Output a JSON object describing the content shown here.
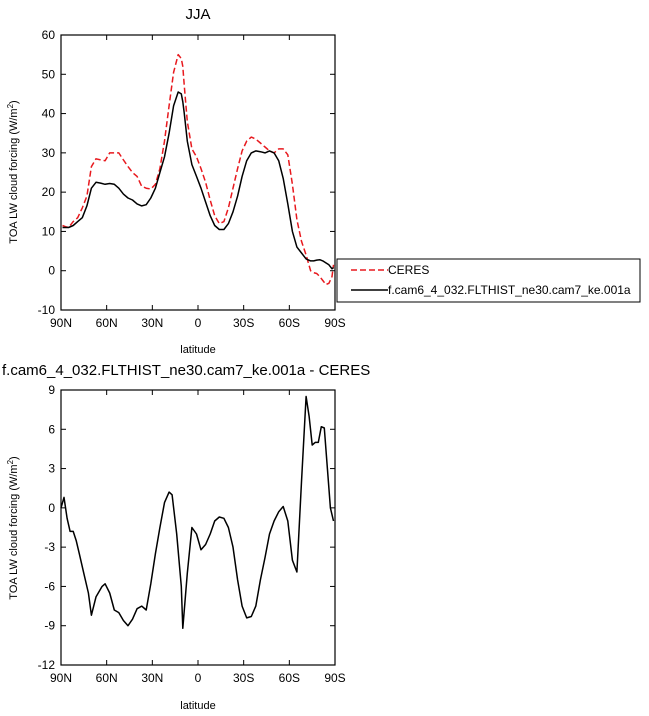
{
  "chart_data": [
    {
      "type": "line",
      "title": "JJA",
      "xlabel": "latitude",
      "ylabel": "TOA LW cloud forcing (W/m",
      "ylabel_sup": "2",
      "ylabel_close": ")",
      "xlim": [
        90,
        -90
      ],
      "ylim": [
        -10,
        60
      ],
      "xticks": [
        90,
        60,
        30,
        0,
        -30,
        -60,
        -90
      ],
      "xtick_labels": [
        "90N",
        "60N",
        "30N",
        "0",
        "30S",
        "60S",
        "90S"
      ],
      "yticks": [
        -10,
        0,
        10,
        20,
        30,
        40,
        50,
        60
      ],
      "ytick_labels": [
        "-10",
        "0",
        "10",
        "20",
        "30",
        "40",
        "50",
        "60"
      ],
      "grid": false,
      "legend_position": "right",
      "series": [
        {
          "name": "CERES",
          "color": "#e8191e",
          "dash": "dashed",
          "x": [
            89,
            87,
            85,
            82,
            79,
            76,
            73,
            70,
            67,
            64,
            61,
            58,
            55,
            52,
            49,
            46,
            43,
            40,
            37,
            34,
            31,
            28,
            25,
            22,
            19,
            16,
            13,
            11,
            10,
            9,
            7,
            4,
            1,
            -2,
            -5,
            -8,
            -11,
            -14,
            -17,
            -20,
            -23,
            -26,
            -29,
            -32,
            -35,
            -38,
            -41,
            -44,
            -47,
            -50,
            -53,
            -56,
            -59,
            -62,
            -65,
            -68,
            -71,
            -74,
            -76,
            -78,
            -80,
            -82,
            -84,
            -86,
            -88,
            -89
          ],
          "y": [
            11.5,
            11.2,
            11.0,
            12.5,
            13.5,
            16.0,
            19.0,
            26.5,
            28.5,
            28.2,
            28.0,
            30.0,
            30.0,
            30.0,
            28.2,
            26.5,
            25.0,
            24.0,
            21.5,
            21.0,
            20.8,
            22.0,
            26.0,
            33.0,
            42.0,
            50.5,
            55.0,
            54.0,
            52.0,
            47.0,
            38.0,
            31.0,
            29.0,
            26.0,
            22.5,
            18.0,
            14.0,
            12.0,
            12.5,
            16.0,
            21.0,
            26.0,
            30.5,
            33.0,
            34.0,
            33.5,
            32.5,
            31.5,
            30.5,
            30.0,
            31.0,
            31.0,
            29.5,
            22.0,
            13.0,
            7.5,
            4.0,
            0.0,
            -0.5,
            -0.7,
            -1.5,
            -2.5,
            -3.5,
            -3.2,
            -1.5,
            1.5
          ]
        },
        {
          "name": "f.cam6_4_032.FLTHIST_ne30.cam7_ke.001a",
          "color": "#000000",
          "dash": "solid",
          "x": [
            89,
            87,
            85,
            82,
            79,
            76,
            73,
            70,
            67,
            64,
            61,
            58,
            55,
            52,
            49,
            46,
            43,
            40,
            37,
            34,
            31,
            28,
            25,
            22,
            19,
            16,
            13,
            11,
            10,
            9,
            7,
            4,
            1,
            -2,
            -5,
            -8,
            -11,
            -14,
            -17,
            -20,
            -23,
            -26,
            -29,
            -32,
            -35,
            -38,
            -41,
            -44,
            -47,
            -50,
            -53,
            -56,
            -59,
            -62,
            -65,
            -68,
            -71,
            -74,
            -76,
            -78,
            -80,
            -82,
            -84,
            -86,
            -88,
            -89
          ],
          "y": [
            11.0,
            11.0,
            11.0,
            11.5,
            12.5,
            13.5,
            16.5,
            21.0,
            22.5,
            22.3,
            22.0,
            22.2,
            22.0,
            21.0,
            19.5,
            18.5,
            18.0,
            17.0,
            16.5,
            16.8,
            18.5,
            21.0,
            25.0,
            29.0,
            35.0,
            42.0,
            45.5,
            45.0,
            43.0,
            40.0,
            33.0,
            27.0,
            24.0,
            21.0,
            17.5,
            14.0,
            11.5,
            10.5,
            10.5,
            12.0,
            15.0,
            19.0,
            24.0,
            28.0,
            30.0,
            30.5,
            30.3,
            30.0,
            30.5,
            30.0,
            28.0,
            23.5,
            17.0,
            10.0,
            6.0,
            4.5,
            3.0,
            2.5,
            2.5,
            2.7,
            2.8,
            2.5,
            2.0,
            1.5,
            0.5,
            0.8
          ]
        }
      ]
    },
    {
      "type": "line",
      "title": "f.cam6_4_032.FLTHIST_ne30.cam7_ke.001a - CERES",
      "xlabel": "latitude",
      "ylabel": "TOA LW cloud forcing (W/m",
      "ylabel_sup": "2",
      "ylabel_close": ")",
      "xlim": [
        90,
        -90
      ],
      "ylim": [
        -12,
        9
      ],
      "xticks": [
        90,
        60,
        30,
        0,
        -30,
        -60,
        -90
      ],
      "xtick_labels": [
        "90N",
        "60N",
        "30N",
        "0",
        "30S",
        "60S",
        "90S"
      ],
      "yticks": [
        -12,
        -9,
        -6,
        -3,
        0,
        3,
        6,
        9
      ],
      "ytick_labels": [
        "-12",
        "-9",
        "-6",
        "-3",
        "0",
        "3",
        "6",
        "9"
      ],
      "grid": false,
      "series": [
        {
          "color": "#000000",
          "dash": "solid",
          "x": [
            90,
            88,
            86,
            84,
            82,
            80,
            78,
            75,
            72,
            70,
            67,
            63,
            61,
            58,
            55,
            52,
            49,
            46,
            43,
            40,
            37,
            34,
            31,
            28,
            25,
            22,
            19,
            17,
            14,
            11,
            10,
            7,
            4,
            1,
            -2,
            -5,
            -8,
            -11,
            -14,
            -17,
            -20,
            -23,
            -26,
            -29,
            -32,
            -35,
            -38,
            -41,
            -44,
            -47,
            -50,
            -53,
            -56,
            -59,
            -62,
            -65,
            -68,
            -71,
            -73,
            -75,
            -77,
            -79,
            -81,
            -83,
            -85,
            -87,
            -89
          ],
          "y": [
            0.0,
            0.8,
            -0.8,
            -1.8,
            -1.8,
            -2.5,
            -3.5,
            -5.0,
            -6.5,
            -8.2,
            -6.8,
            -6.0,
            -5.8,
            -6.5,
            -7.8,
            -8.0,
            -8.6,
            -9.0,
            -8.5,
            -7.7,
            -7.5,
            -7.8,
            -5.8,
            -3.5,
            -1.5,
            0.4,
            1.2,
            1.0,
            -2.0,
            -6.0,
            -9.2,
            -5.0,
            -1.5,
            -2.0,
            -3.2,
            -2.8,
            -2.0,
            -1.0,
            -0.7,
            -0.8,
            -1.5,
            -3.0,
            -5.5,
            -7.5,
            -8.4,
            -8.3,
            -7.5,
            -5.5,
            -3.8,
            -2.0,
            -1.0,
            -0.3,
            0.1,
            -1.0,
            -4.0,
            -4.9,
            2.0,
            8.5,
            7.0,
            4.8,
            5.0,
            5.0,
            6.2,
            6.1,
            3.0,
            0.0,
            -1.0
          ]
        }
      ]
    }
  ]
}
